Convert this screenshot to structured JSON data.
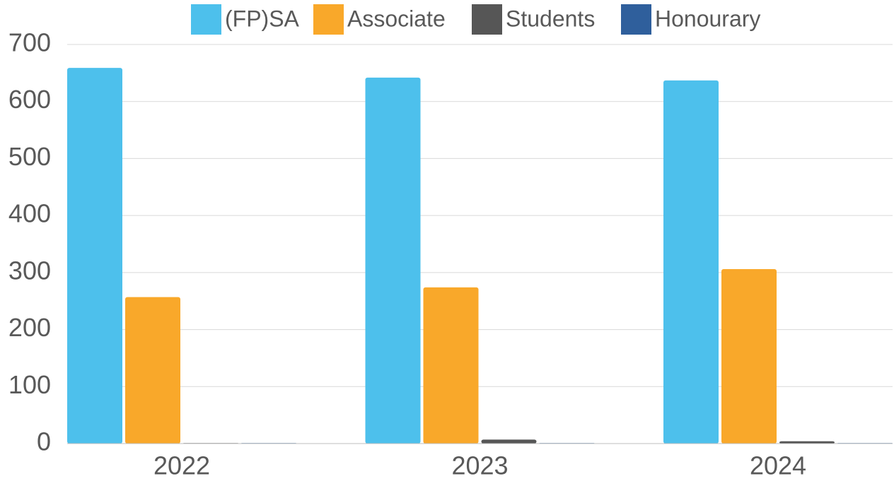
{
  "chart_data": {
    "type": "bar",
    "categories": [
      "2022",
      "2023",
      "2024"
    ],
    "series": [
      {
        "name": "(FP)SA",
        "color": "#4dc0ec",
        "values": [
          659,
          642,
          637
        ]
      },
      {
        "name": "Associate",
        "color": "#f9a82a",
        "values": [
          257,
          274,
          306
        ]
      },
      {
        "name": "Students",
        "color": "#565656",
        "values": [
          1,
          7,
          4
        ]
      },
      {
        "name": "Honourary",
        "color": "#2f5f9c",
        "values": [
          1,
          1,
          1
        ]
      }
    ],
    "ylim": [
      0,
      700
    ],
    "yticks": [
      0,
      100,
      200,
      300,
      400,
      500,
      600,
      700
    ],
    "grid": true,
    "legend": "top"
  }
}
